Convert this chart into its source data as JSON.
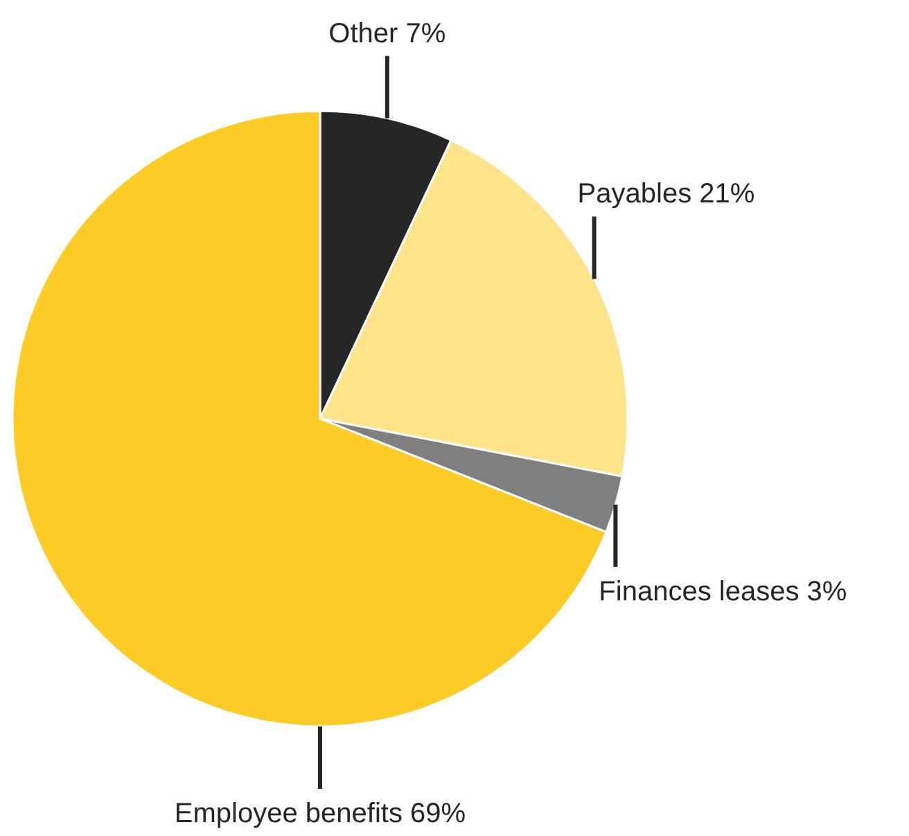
{
  "chart_data": {
    "type": "pie",
    "categories": [
      "Other",
      "Payables",
      "Finances leases",
      "Employee benefits"
    ],
    "values": [
      7,
      21,
      3,
      69
    ],
    "value_labels": [
      "7%",
      "21%",
      "3%",
      "69%"
    ],
    "colors": [
      "#262626",
      "#fee38a",
      "#7f7f7f",
      "#fccb25"
    ]
  }
}
